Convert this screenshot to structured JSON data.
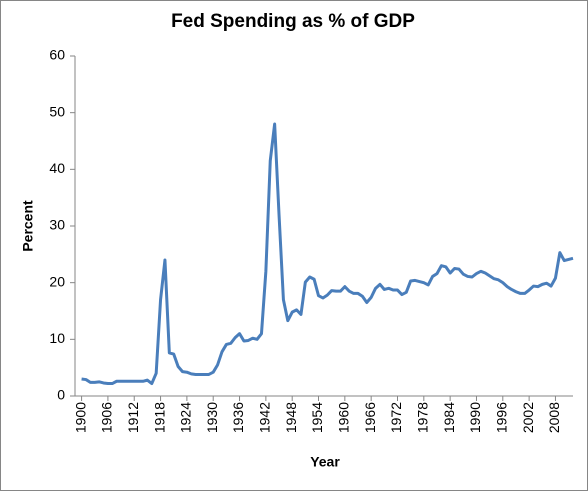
{
  "chart_data": {
    "type": "line",
    "title": "Fed Spending as % of GDP",
    "x_label": "Year",
    "y_label": "Percent",
    "x": [
      1900,
      1901,
      1902,
      1903,
      1904,
      1905,
      1906,
      1907,
      1908,
      1909,
      1910,
      1911,
      1912,
      1913,
      1914,
      1915,
      1916,
      1917,
      1918,
      1919,
      1920,
      1921,
      1922,
      1923,
      1924,
      1925,
      1926,
      1927,
      1928,
      1929,
      1930,
      1931,
      1932,
      1933,
      1934,
      1935,
      1936,
      1937,
      1938,
      1939,
      1940,
      1941,
      1942,
      1943,
      1944,
      1945,
      1946,
      1947,
      1948,
      1949,
      1950,
      1951,
      1952,
      1953,
      1954,
      1955,
      1956,
      1957,
      1958,
      1959,
      1960,
      1961,
      1962,
      1963,
      1964,
      1965,
      1966,
      1967,
      1968,
      1969,
      1970,
      1971,
      1972,
      1973,
      1974,
      1975,
      1976,
      1977,
      1978,
      1979,
      1980,
      1981,
      1982,
      1983,
      1984,
      1985,
      1986,
      1987,
      1988,
      1989,
      1990,
      1991,
      1992,
      1993,
      1994,
      1995,
      1996,
      1997,
      1998,
      1999,
      2000,
      2001,
      2002,
      2003,
      2004,
      2005,
      2006,
      2007,
      2008,
      2009,
      2010,
      2011,
      2012
    ],
    "series": [
      {
        "name": "Fed Spending",
        "color": "#4a7ebb",
        "values": [
          3.0,
          2.9,
          2.4,
          2.4,
          2.5,
          2.3,
          2.2,
          2.2,
          2.6,
          2.6,
          2.6,
          2.6,
          2.6,
          2.6,
          2.6,
          2.8,
          2.2,
          4.0,
          17,
          24,
          7.6,
          7.4,
          5.2,
          4.3,
          4.2,
          3.9,
          3.8,
          3.8,
          3.8,
          3.8,
          4.2,
          5.5,
          7.8,
          9.1,
          9.3,
          10.3,
          11.0,
          9.7,
          9.8,
          10.2,
          10.0,
          11.0,
          22,
          41.5,
          48,
          32,
          17,
          13.3,
          14.8,
          15.2,
          14.4,
          20.1,
          21.0,
          20.6,
          17.7,
          17.3,
          17.8,
          18.6,
          18.5,
          18.5,
          19.3,
          18.5,
          18.1,
          18.1,
          17.6,
          16.5,
          17.4,
          19.0,
          19.7,
          18.8,
          19.0,
          18.7,
          18.7,
          17.9,
          18.3,
          20.3,
          20.4,
          20.2,
          20.0,
          19.6,
          21.1,
          21.6,
          23.0,
          22.8,
          21.7,
          22.5,
          22.4,
          21.5,
          21.1,
          21.0,
          21.6,
          22.0,
          21.7,
          21.2,
          20.7,
          20.5,
          20.0,
          19.3,
          18.8,
          18.4,
          18.1,
          18.1,
          18.7,
          19.4,
          19.3,
          19.7,
          19.9,
          19.4,
          20.8,
          25.3,
          23.9,
          24.1,
          24.3
        ]
      }
    ],
    "xlim": [
      1898.5,
      2012
    ],
    "xticks": [
      1900,
      1906,
      1912,
      1918,
      1924,
      1930,
      1936,
      1942,
      1948,
      1954,
      1960,
      1966,
      1972,
      1978,
      1984,
      1990,
      1996,
      2002,
      2008
    ],
    "ylim": [
      0,
      60
    ],
    "yticks": [
      0,
      10,
      20,
      30,
      40,
      50,
      60
    ],
    "grid": false
  }
}
